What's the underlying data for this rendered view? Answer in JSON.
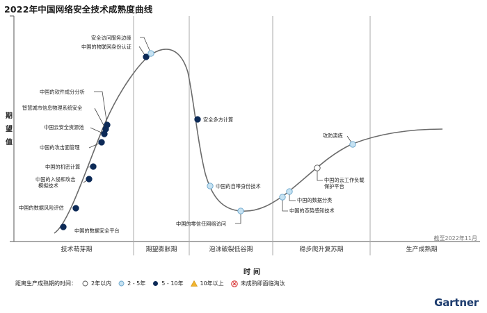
{
  "title": "2022年中国网络安全技术成熟度曲线",
  "y_axis_label": "期望值",
  "x_axis_label": "时间",
  "as_of": "截至2022年11月",
  "brand": "Gartner",
  "colors": {
    "curve": "#6b6b6b",
    "dot_5_10": "#0d2a57",
    "dot_2_5": "#c6e2f2",
    "dot_2_5_stroke": "#6aa6cc",
    "dot_lt2": "#ffffff",
    "dot_gt10": "#f2b52f",
    "obsolete": "#d62b2b",
    "divider": "#a9a9a9"
  },
  "phases": [
    "技术萌芽期",
    "期望膨胀期",
    "泡沫破裂低谷期",
    "稳步爬升复苏期",
    "生产成熟期"
  ],
  "legend": {
    "title": "距离生产成熟期的时间：",
    "items": [
      {
        "key": "lt2",
        "label": "2年以内"
      },
      {
        "key": "2_5",
        "label": "2 - 5年"
      },
      {
        "key": "5_10",
        "label": "5 - 10年"
      },
      {
        "key": "gt10",
        "label": "10年以上"
      },
      {
        "key": "obsolete",
        "label": "未成熟即面临淘汰"
      }
    ]
  },
  "chart_data": {
    "type": "hype_cycle",
    "title": "2022年中国网络安全技术成熟度曲线",
    "ylabel": "期望值",
    "xlabel": "时间",
    "phases": [
      "技术萌芽期",
      "期望膨胀期",
      "泡沫破裂低谷期",
      "稳步爬升复苏期",
      "生产成熟期"
    ],
    "technologies": [
      {
        "name": "中国的数据安全平台",
        "phase": "技术萌芽期",
        "years": "5_10"
      },
      {
        "name": "中国的数据风险评估",
        "phase": "技术萌芽期",
        "years": "5_10"
      },
      {
        "name": "中国的入侵和攻击模拟技术",
        "phase": "技术萌芽期",
        "years": "5_10"
      },
      {
        "name": "中国的机密计算",
        "phase": "技术萌芽期",
        "years": "5_10"
      },
      {
        "name": "中国的攻击面管理",
        "phase": "技术萌芽期",
        "years": "5_10"
      },
      {
        "name": "中国云安全资源池",
        "phase": "技术萌芽期",
        "years": "5_10"
      },
      {
        "name": "智慧城市信息物理系统安全",
        "phase": "技术萌芽期",
        "years": "5_10"
      },
      {
        "name": "中国的软件成分分析",
        "phase": "技术萌芽期",
        "years": "5_10"
      },
      {
        "name": "中国的物联网身份认证",
        "phase": "期望膨胀期",
        "years": "5_10"
      },
      {
        "name": "安全访问服务边缘",
        "phase": "期望膨胀期",
        "years": "2_5"
      },
      {
        "name": "安全多方计算",
        "phase": "泡沫破裂低谷期",
        "years": "5_10"
      },
      {
        "name": "中国的自带身份技术",
        "phase": "泡沫破裂低谷期",
        "years": "2_5"
      },
      {
        "name": "中国的零信任网络访问",
        "phase": "泡沫破裂低谷期",
        "years": "2_5"
      },
      {
        "name": "中国的态势感知技术",
        "phase": "稳步爬升复苏期",
        "years": "2_5"
      },
      {
        "name": "中国的数据分类",
        "phase": "稳步爬升复苏期",
        "years": "2_5"
      },
      {
        "name": "中国的云工作负载保护平台",
        "phase": "稳步爬升复苏期",
        "years": "lt2"
      },
      {
        "name": "攻防演练",
        "phase": "稳步爬升复苏期",
        "years": "2_5"
      }
    ]
  }
}
